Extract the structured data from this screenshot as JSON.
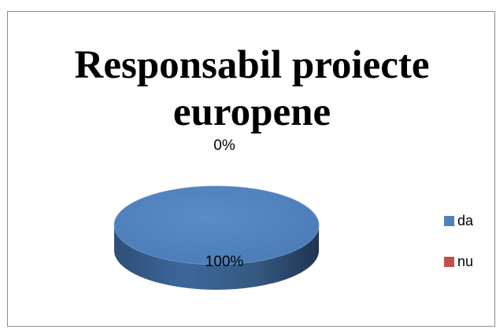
{
  "chart_data": {
    "type": "pie",
    "style": "3d",
    "title": "Responsabil proiecte europene",
    "title_lines": [
      "Responsabil proiecte",
      "europene"
    ],
    "categories": [
      "da",
      "nu"
    ],
    "values": [
      100,
      0
    ],
    "data_labels": [
      "100%",
      "0%"
    ],
    "colors": [
      "#4F81BD",
      "#C0504D"
    ],
    "legend_position": "right"
  }
}
